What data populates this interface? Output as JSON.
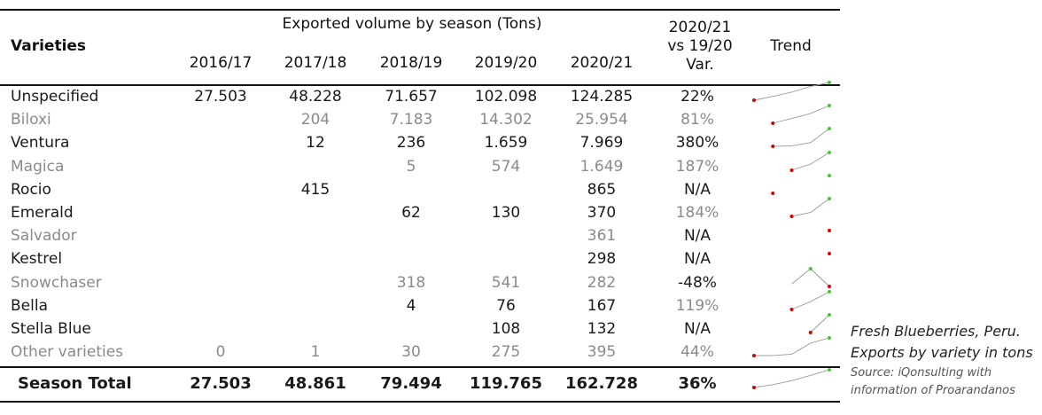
{
  "chart_data": {
    "type": "table",
    "title": "Exported volume by season (Tons)",
    "row_header": "Varieties",
    "seasons": [
      "2016/17",
      "2017/18",
      "2018/19",
      "2019/20",
      "2020/21"
    ],
    "var_header": [
      "2020/21",
      "vs 19/20",
      "Var."
    ],
    "trend_header": "Trend",
    "rows": [
      {
        "name": "Unspecified",
        "values": [
          "27.503",
          "48.228",
          "71.657",
          "102.098",
          "124.285"
        ],
        "var": "22%",
        "tone": "dark",
        "series": [
          27503,
          48228,
          71657,
          102098,
          124285
        ]
      },
      {
        "name": "Biloxi",
        "values": [
          "",
          "204",
          "7.183",
          "14.302",
          "25.954"
        ],
        "var": "81%",
        "tone": "gray",
        "series": [
          null,
          204,
          7183,
          14302,
          25954
        ]
      },
      {
        "name": "Ventura",
        "values": [
          "",
          "12",
          "236",
          "1.659",
          "7.969"
        ],
        "var": "380%",
        "tone": "dark",
        "series": [
          null,
          12,
          236,
          1659,
          7969
        ]
      },
      {
        "name": "Magica",
        "values": [
          "",
          "",
          "5",
          "574",
          "1.649"
        ],
        "var": "187%",
        "tone": "gray",
        "series": [
          null,
          null,
          5,
          574,
          1649
        ]
      },
      {
        "name": "Rocio",
        "values": [
          "",
          "415",
          "",
          "",
          "865"
        ],
        "var": "N/A",
        "tone": "dark",
        "series": [
          null,
          415,
          null,
          null,
          865
        ]
      },
      {
        "name": "Emerald",
        "values": [
          "",
          "",
          "62",
          "130",
          "370"
        ],
        "var": "184%",
        "tone": "dark",
        "var_tone": "gray",
        "series": [
          null,
          null,
          62,
          130,
          370
        ]
      },
      {
        "name": "Salvador",
        "values": [
          "",
          "",
          "",
          "",
          "361"
        ],
        "var": "N/A",
        "tone": "gray",
        "var_tone": "dark",
        "series": [
          null,
          null,
          null,
          null,
          361
        ]
      },
      {
        "name": "Kestrel",
        "values": [
          "",
          "",
          "",
          "",
          "298"
        ],
        "var": "N/A",
        "tone": "dark",
        "series": [
          null,
          null,
          null,
          null,
          298
        ]
      },
      {
        "name": "Snowchaser",
        "values": [
          "",
          "",
          "318",
          "541",
          "282"
        ],
        "var": "-48%",
        "tone": "gray",
        "var_tone": "dark",
        "series": [
          null,
          null,
          318,
          541,
          282
        ]
      },
      {
        "name": "Bella",
        "values": [
          "",
          "",
          "4",
          "76",
          "167"
        ],
        "var": "119%",
        "tone": "dark",
        "var_tone": "gray",
        "series": [
          null,
          null,
          4,
          76,
          167
        ]
      },
      {
        "name": "Stella Blue",
        "values": [
          "",
          "",
          "",
          "108",
          "132"
        ],
        "var": "N/A",
        "tone": "dark",
        "series": [
          null,
          null,
          null,
          108,
          132
        ]
      },
      {
        "name": "Other varieties",
        "values": [
          "0",
          "1",
          "30",
          "275",
          "395"
        ],
        "var": "44%",
        "tone": "gray",
        "series": [
          0,
          1,
          30,
          275,
          395
        ]
      }
    ],
    "total": {
      "name": "Season Total",
      "values": [
        "27.503",
        "48.861",
        "79.494",
        "119.765",
        "162.728"
      ],
      "var": "36%",
      "series": [
        27503,
        48861,
        79494,
        119765,
        162728
      ]
    },
    "colors": {
      "text": "#1a1a1a",
      "gray": "#8a8a8a",
      "trend_line": "#9a9a9a",
      "trend_low": "#d40000",
      "trend_high": "#4fc43a"
    }
  },
  "caption": {
    "title_lines": [
      "Fresh Blueberries, Peru.",
      "Exports by variety in tons"
    ],
    "source_lines": [
      "Source: iQonsulting with",
      "information of Proarandanos"
    ]
  }
}
